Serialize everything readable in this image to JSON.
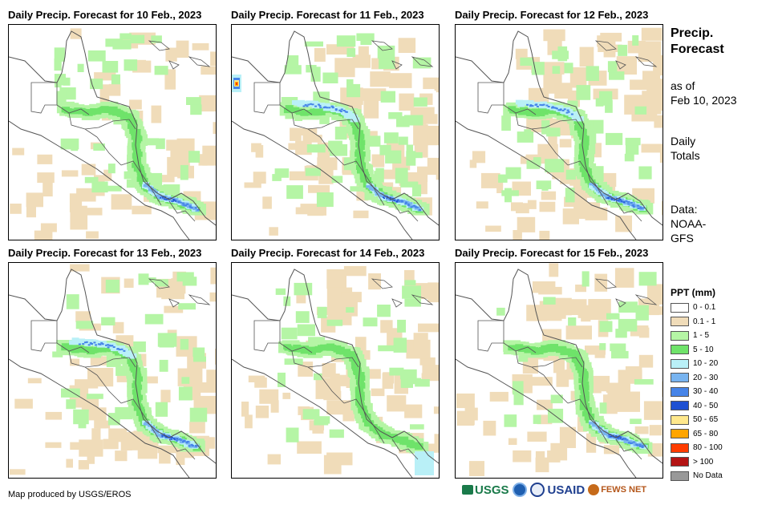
{
  "panels": [
    {
      "title": "Daily Precip. Forecast for 10 Feb., 2023",
      "variant": 0
    },
    {
      "title": "Daily Precip. Forecast for 11 Feb., 2023",
      "variant": 1
    },
    {
      "title": "Daily Precip. Forecast for 12 Feb., 2023",
      "variant": 2
    },
    {
      "title": "Daily Precip. Forecast for 13 Feb., 2023",
      "variant": 3
    },
    {
      "title": "Daily Precip. Forecast for 14 Feb., 2023",
      "variant": 4
    },
    {
      "title": "Daily Precip. Forecast for 15 Feb., 2023",
      "variant": 5
    }
  ],
  "side": {
    "title_line1": "Precip.",
    "title_line2": "Forecast",
    "asof_line1": "as of",
    "asof_line2": "Feb 10, 2023",
    "daily_line1": "Daily",
    "daily_line2": "Totals",
    "data_line1": "Data:",
    "data_line2": "NOAA-",
    "data_line3": "GFS"
  },
  "legend": {
    "title": "PPT (mm)",
    "items": [
      {
        "label": "0 - 0.1",
        "color": "#ffffff"
      },
      {
        "label": "0.1 - 1",
        "color": "#f0dcb9"
      },
      {
        "label": "1 - 5",
        "color": "#b5f5a5"
      },
      {
        "label": "5 - 10",
        "color": "#6fe36a"
      },
      {
        "label": "10 - 20",
        "color": "#b9f0f7"
      },
      {
        "label": "20 - 30",
        "color": "#78b4f0"
      },
      {
        "label": "30 - 40",
        "color": "#4684e8"
      },
      {
        "label": "40 - 50",
        "color": "#1e50d2"
      },
      {
        "label": "50 - 65",
        "color": "#ffe88c"
      },
      {
        "label": "65 - 80",
        "color": "#ffa500"
      },
      {
        "label": "80 - 100",
        "color": "#ff3c00"
      },
      {
        "label": "> 100",
        "color": "#b41414"
      },
      {
        "label": "No Data",
        "color": "#999999"
      }
    ]
  },
  "footer": {
    "credit": "Map produced by USGS/EROS",
    "usgs": "USGS",
    "usaid": "USAID",
    "fewsnet": "FEWS NET"
  }
}
